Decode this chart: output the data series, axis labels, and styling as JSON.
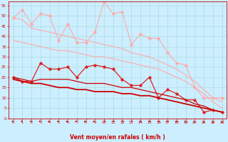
{
  "background_color": "#cceeff",
  "grid_color": "#aadddd",
  "xlabel": "Vent moyen/en rafales ( km/h )",
  "xlabel_color": "#cc0000",
  "tick_color": "#cc0000",
  "ylim": [
    0,
    57
  ],
  "yticks": [
    0,
    5,
    10,
    15,
    20,
    25,
    30,
    35,
    40,
    45,
    50,
    55
  ],
  "xlim": [
    -0.5,
    23.5
  ],
  "xticks": [
    0,
    1,
    2,
    3,
    4,
    5,
    6,
    7,
    8,
    9,
    10,
    11,
    12,
    13,
    14,
    15,
    16,
    17,
    18,
    19,
    20,
    21,
    22,
    23
  ],
  "hours": [
    0,
    1,
    2,
    3,
    4,
    5,
    6,
    7,
    8,
    9,
    10,
    11,
    12,
    13,
    14,
    15,
    16,
    17,
    18,
    19,
    20,
    21,
    22,
    23
  ],
  "series": [
    {
      "color": "#ffaaaa",
      "linewidth": 0.8,
      "marker": "D",
      "markersize": 1.8,
      "values": [
        49,
        53,
        46,
        51,
        50,
        38,
        46,
        37,
        37,
        42,
        57,
        51,
        52,
        36,
        41,
        39,
        39,
        32,
        27,
        26,
        15,
        10,
        10,
        10
      ]
    },
    {
      "color": "#ffaaaa",
      "linewidth": 0.8,
      "marker": null,
      "markersize": 0,
      "values": [
        49,
        48,
        44,
        43,
        42,
        41,
        40,
        39,
        38,
        37,
        36,
        35,
        34,
        32,
        31,
        30,
        28,
        26,
        24,
        21,
        18,
        14,
        10,
        8
      ]
    },
    {
      "color": "#ffaaaa",
      "linewidth": 0.8,
      "marker": null,
      "markersize": 0,
      "values": [
        38,
        37,
        36,
        35,
        34,
        33,
        33,
        32,
        31,
        30,
        30,
        29,
        28,
        27,
        26,
        25,
        24,
        22,
        20,
        18,
        15,
        12,
        8,
        5
      ]
    },
    {
      "color": "#dd2222",
      "linewidth": 0.9,
      "marker": "D",
      "markersize": 1.8,
      "values": [
        20,
        18,
        18,
        27,
        24,
        24,
        25,
        20,
        25,
        26,
        25,
        24,
        19,
        16,
        16,
        20,
        10,
        14,
        12,
        9,
        9,
        3,
        4,
        3
      ]
    },
    {
      "color": "#cc0000",
      "linewidth": 0.9,
      "marker": null,
      "markersize": 0,
      "values": [
        20,
        19,
        18,
        19,
        19,
        19,
        19,
        18,
        17,
        17,
        17,
        16,
        15,
        15,
        14,
        13,
        12,
        11,
        10,
        9,
        7,
        6,
        4,
        3
      ]
    },
    {
      "color": "#cc0000",
      "linewidth": 1.3,
      "marker": null,
      "markersize": 0,
      "values": [
        19,
        18,
        17,
        17,
        16,
        15,
        15,
        14,
        14,
        13,
        13,
        13,
        12,
        12,
        11,
        11,
        10,
        9,
        8,
        7,
        6,
        5,
        4,
        3
      ]
    }
  ],
  "arrow_angles": [
    10,
    10,
    10,
    20,
    20,
    20,
    30,
    30,
    35,
    40,
    45,
    50,
    50,
    50,
    55,
    55,
    60,
    65,
    70,
    75,
    80,
    85,
    90,
    90
  ]
}
